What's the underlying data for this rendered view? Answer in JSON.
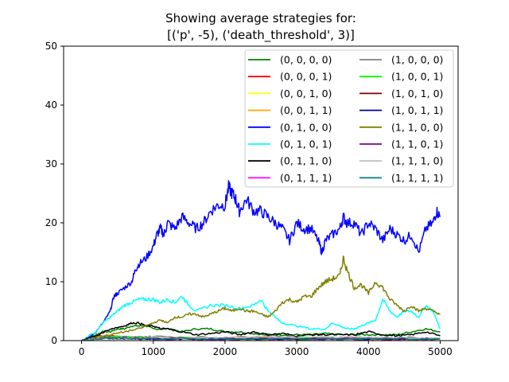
{
  "chart_data": {
    "type": "line",
    "title": [
      "Showing average strategies for:",
      "[('p', -5), ('death_threshold', 3)]"
    ],
    "xlabel": "",
    "ylabel": "",
    "xlim": [
      -250,
      5250
    ],
    "ylim": [
      0,
      50
    ],
    "xticks": [
      0,
      1000,
      2000,
      3000,
      4000,
      5000
    ],
    "yticks": [
      0,
      10,
      20,
      30,
      40,
      50
    ],
    "grid": false,
    "legend_position": "top-right",
    "legend_columns": 2,
    "series": [
      {
        "name": "(0, 0, 0, 0)",
        "color": "#008000",
        "x": [
          0,
          100,
          200,
          300,
          400,
          500,
          600,
          700,
          800,
          900,
          1000,
          1200,
          1400,
          1600,
          1800,
          2000,
          2200,
          2400,
          2600,
          2800,
          3000,
          3200,
          3400,
          3600,
          3800,
          4000,
          4200,
          4400,
          4600,
          4800,
          5000
        ],
        "y": [
          0,
          0.5,
          1,
          1.5,
          1.5,
          2,
          2,
          2.5,
          2.5,
          2.5,
          2,
          2,
          1.5,
          2,
          2,
          1.5,
          1.5,
          1.2,
          1,
          1,
          1,
          1,
          1.2,
          1,
          1,
          1,
          1,
          1,
          1.5,
          2,
          1.5
        ]
      },
      {
        "name": "(0, 0, 0, 1)",
        "color": "#ff0000",
        "x": [
          0,
          200,
          400,
          600,
          800,
          1000,
          1500,
          2000,
          2500,
          3000,
          3500,
          4000,
          4500,
          5000
        ],
        "y": [
          0,
          0.8,
          0.8,
          0.6,
          0.5,
          0.4,
          0.3,
          0.3,
          0.3,
          0.3,
          0.3,
          0.3,
          0.3,
          0.3
        ]
      },
      {
        "name": "(0, 0, 1, 0)",
        "color": "#ffff00",
        "x": [
          0,
          200,
          400,
          600,
          800,
          1000,
          1500,
          2000,
          2500,
          3000,
          3500,
          4000,
          4500,
          5000
        ],
        "y": [
          0,
          0.5,
          0.6,
          0.5,
          0.4,
          0.4,
          0.3,
          0.3,
          0.3,
          0.3,
          0.3,
          0.3,
          0.3,
          0.3
        ]
      },
      {
        "name": "(0, 0, 1, 1)",
        "color": "#ffa500",
        "x": [
          0,
          200,
          400,
          600,
          800,
          1000,
          1500,
          2000,
          2500,
          3000,
          3500,
          4000,
          4500,
          5000
        ],
        "y": [
          0,
          0.6,
          0.8,
          0.6,
          0.6,
          0.5,
          0.4,
          0.3,
          0.3,
          0.3,
          0.3,
          0.3,
          0.3,
          0.3
        ]
      },
      {
        "name": "(0, 1, 0, 0)",
        "color": "#0000ff",
        "x": [
          0,
          100,
          200,
          300,
          400,
          450,
          500,
          600,
          700,
          750,
          800,
          900,
          1000,
          1050,
          1100,
          1150,
          1200,
          1300,
          1400,
          1500,
          1600,
          1700,
          1800,
          1900,
          2000,
          2050,
          2100,
          2150,
          2200,
          2300,
          2400,
          2500,
          2600,
          2700,
          2800,
          2900,
          3000,
          3100,
          3200,
          3300,
          3350,
          3400,
          3500,
          3600,
          3650,
          3700,
          3800,
          3900,
          4000,
          4100,
          4200,
          4300,
          4400,
          4500,
          4600,
          4700,
          4800,
          4900,
          4950,
          5000
        ],
        "y": [
          0,
          0.5,
          1.5,
          3,
          5,
          7.5,
          8,
          9,
          10,
          12,
          13,
          14,
          16,
          18,
          19,
          18,
          20,
          19,
          21,
          20,
          19,
          20,
          22,
          23,
          23,
          26,
          25,
          24,
          22,
          24,
          22,
          22,
          21,
          20,
          19,
          17,
          20,
          19,
          19,
          17,
          15,
          17,
          18,
          19,
          21,
          20,
          20,
          18,
          20,
          19,
          17,
          19,
          18,
          17,
          18,
          15,
          19,
          20,
          22,
          21
        ]
      },
      {
        "name": "(0, 1, 0, 1)",
        "color": "#00ffff",
        "x": [
          0,
          200,
          300,
          400,
          500,
          600,
          700,
          800,
          900,
          1000,
          1100,
          1200,
          1300,
          1400,
          1500,
          1600,
          1800,
          2000,
          2200,
          2400,
          2500,
          2600,
          2800,
          3000,
          3200,
          3400,
          3500,
          3600,
          3700,
          3800,
          3900,
          4000,
          4100,
          4200,
          4300,
          4400,
          4500,
          4600,
          4700,
          4800,
          4900,
          5000
        ],
        "y": [
          0,
          1.5,
          3,
          4,
          5,
          6,
          6.5,
          7,
          7,
          7,
          6.5,
          7,
          6.5,
          7.5,
          6,
          5,
          6,
          6,
          5.5,
          6,
          7,
          5,
          3,
          2.5,
          2,
          2,
          3,
          2.5,
          2,
          2,
          2.5,
          3,
          3.5,
          7,
          5,
          4,
          5,
          5,
          4,
          6,
          5,
          2
        ]
      },
      {
        "name": "(0, 1, 1, 0)",
        "color": "#000000",
        "x": [
          0,
          200,
          400,
          600,
          700,
          800,
          900,
          1000,
          1100,
          1200,
          1400,
          1600,
          1800,
          2000,
          2200,
          2400,
          2600,
          2800,
          3000,
          3200,
          3400,
          3600,
          3800,
          4000,
          4200,
          4400,
          4600,
          4800,
          5000
        ],
        "y": [
          0,
          0.8,
          2,
          2.5,
          3,
          3,
          2.5,
          2.5,
          2,
          2,
          1.5,
          1,
          1.2,
          1.5,
          1,
          1.5,
          1,
          1.2,
          0.8,
          1,
          1,
          1,
          1,
          1.5,
          1,
          0.8,
          1,
          1.5,
          0.8
        ]
      },
      {
        "name": "(0, 1, 1, 1)",
        "color": "#ff00ff",
        "x": [
          0,
          200,
          400,
          600,
          800,
          1000,
          1500,
          2000,
          2500,
          3000,
          3500,
          4000,
          4500,
          5000
        ],
        "y": [
          0,
          0.3,
          0.5,
          0.6,
          0.5,
          0.4,
          0.3,
          0.3,
          0.3,
          0.3,
          0.3,
          0.3,
          0.3,
          0.3
        ]
      },
      {
        "name": "(1, 0, 0, 0)",
        "color": "#808080",
        "x": [
          0,
          200,
          400,
          600,
          800,
          1000,
          1500,
          2000,
          2500,
          3000,
          3500,
          4000,
          4500,
          5000
        ],
        "y": [
          0,
          0.4,
          0.6,
          0.5,
          0.6,
          0.7,
          0.6,
          0.5,
          0.8,
          0.6,
          0.6,
          0.5,
          0.5,
          0.4
        ]
      },
      {
        "name": "(1, 0, 0, 1)",
        "color": "#00ff00",
        "x": [
          0,
          200,
          400,
          600,
          800,
          1000,
          1500,
          2000,
          2500,
          3000,
          3500,
          4000,
          4500,
          5000
        ],
        "y": [
          0,
          0.5,
          0.8,
          0.6,
          0.5,
          0.4,
          0.4,
          0.3,
          0.3,
          0.3,
          0.3,
          0.3,
          0.3,
          0.3
        ]
      },
      {
        "name": "(1, 0, 1, 0)",
        "color": "#800000",
        "x": [
          0,
          200,
          400,
          600,
          800,
          1000,
          1500,
          2000,
          2500,
          3000,
          3500,
          4000,
          4500,
          5000
        ],
        "y": [
          0,
          0.3,
          0.5,
          0.4,
          0.4,
          0.3,
          0.3,
          0.3,
          0.3,
          0.3,
          0.3,
          0.3,
          0.3,
          0.3
        ]
      },
      {
        "name": "(1, 0, 1, 1)",
        "color": "#00008b",
        "x": [
          0,
          200,
          400,
          600,
          800,
          1000,
          1500,
          2000,
          2500,
          3000,
          3500,
          4000,
          4500,
          5000
        ],
        "y": [
          0,
          0.3,
          0.4,
          0.4,
          0.3,
          0.3,
          0.3,
          0.3,
          0.3,
          0.3,
          0.3,
          0.3,
          0.3,
          0.3
        ]
      },
      {
        "name": "(1, 1, 0, 0)",
        "color": "#808000",
        "x": [
          0,
          200,
          400,
          600,
          800,
          1000,
          1100,
          1200,
          1300,
          1400,
          1500,
          1600,
          1700,
          1800,
          1900,
          2000,
          2100,
          2200,
          2300,
          2400,
          2500,
          2600,
          2700,
          2800,
          2900,
          3000,
          3100,
          3200,
          3300,
          3400,
          3500,
          3600,
          3650,
          3700,
          3800,
          3900,
          4000,
          4100,
          4200,
          4300,
          4400,
          4500,
          4600,
          4700,
          4800,
          4900,
          5000
        ],
        "y": [
          0,
          0.5,
          1,
          1.5,
          2,
          3,
          3.5,
          3,
          4,
          4,
          4.5,
          4.5,
          4,
          4.5,
          5,
          5.5,
          5,
          5.5,
          5,
          5,
          4.5,
          4,
          5,
          6.5,
          7,
          6.5,
          7.5,
          7.5,
          9,
          10,
          10.5,
          11,
          14,
          12,
          9,
          9.5,
          8,
          10,
          9,
          7,
          6,
          5,
          6,
          5,
          5.5,
          5,
          4.5
        ]
      },
      {
        "name": "(1, 1, 0, 1)",
        "color": "#800080",
        "x": [
          0,
          200,
          400,
          600,
          800,
          1000,
          1500,
          2000,
          2500,
          3000,
          3500,
          4000,
          4500,
          5000
        ],
        "y": [
          0,
          0.3,
          0.4,
          0.4,
          0.3,
          0.3,
          0.3,
          0.3,
          0.3,
          0.3,
          0.3,
          0.3,
          0.3,
          0.3
        ]
      },
      {
        "name": "(1, 1, 1, 0)",
        "color": "#c0c0c0",
        "x": [
          0,
          200,
          400,
          600,
          800,
          1000,
          1500,
          2000,
          2500,
          3000,
          3500,
          4000,
          4500,
          5000
        ],
        "y": [
          0,
          0.3,
          0.4,
          0.4,
          0.4,
          0.5,
          0.4,
          0.5,
          0.6,
          0.5,
          0.6,
          0.5,
          0.5,
          0.4
        ]
      },
      {
        "name": "(1, 1, 1, 1)",
        "color": "#008080",
        "x": [
          0,
          200,
          400,
          600,
          800,
          1000,
          1500,
          2000,
          2500,
          3000,
          3500,
          4000,
          4500,
          5000
        ],
        "y": [
          0,
          0.3,
          0.5,
          0.4,
          0.4,
          0.3,
          0.3,
          0.3,
          0.3,
          0.3,
          0.3,
          0.3,
          0.3,
          0.3
        ]
      }
    ]
  }
}
